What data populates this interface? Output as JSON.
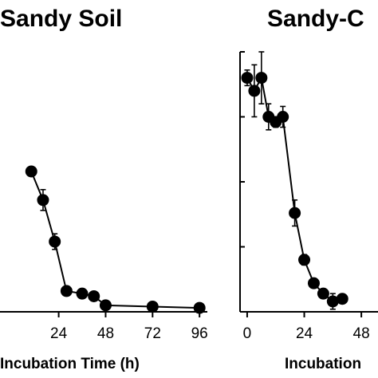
{
  "chart_data": [
    {
      "type": "line",
      "title": "Sandy Soil",
      "xlabel": "Incubation Time (h)",
      "ylabel": "",
      "xlim": [
        -6,
        100
      ],
      "xticks": [
        24,
        48,
        72,
        96
      ],
      "ylim": [
        0,
        100
      ],
      "grid": false,
      "series": [
        {
          "x": [
            10,
            16,
            22,
            28,
            36,
            42,
            48,
            72,
            96
          ],
          "y": [
            54,
            43,
            27,
            8,
            7,
            6,
            2.5,
            2,
            1.5
          ],
          "err": [
            0,
            4,
            3,
            1.5,
            1,
            1,
            1,
            1,
            1
          ]
        }
      ]
    },
    {
      "type": "line",
      "title": "Sandy-C",
      "xlabel": "Incubation",
      "ylabel": "",
      "xlim": [
        -3,
        55
      ],
      "xticks": [
        0,
        24,
        48
      ],
      "ylim": [
        0,
        100
      ],
      "grid": false,
      "series": [
        {
          "x": [
            0,
            3,
            6,
            9,
            12,
            15,
            20,
            24,
            28,
            32,
            36,
            40
          ],
          "y": [
            90,
            85,
            90,
            75,
            73,
            75,
            38,
            20,
            11,
            7,
            4,
            5
          ],
          "err": [
            3,
            10,
            10,
            5,
            2,
            4,
            5,
            2,
            1,
            1,
            3,
            1
          ]
        }
      ]
    }
  ]
}
